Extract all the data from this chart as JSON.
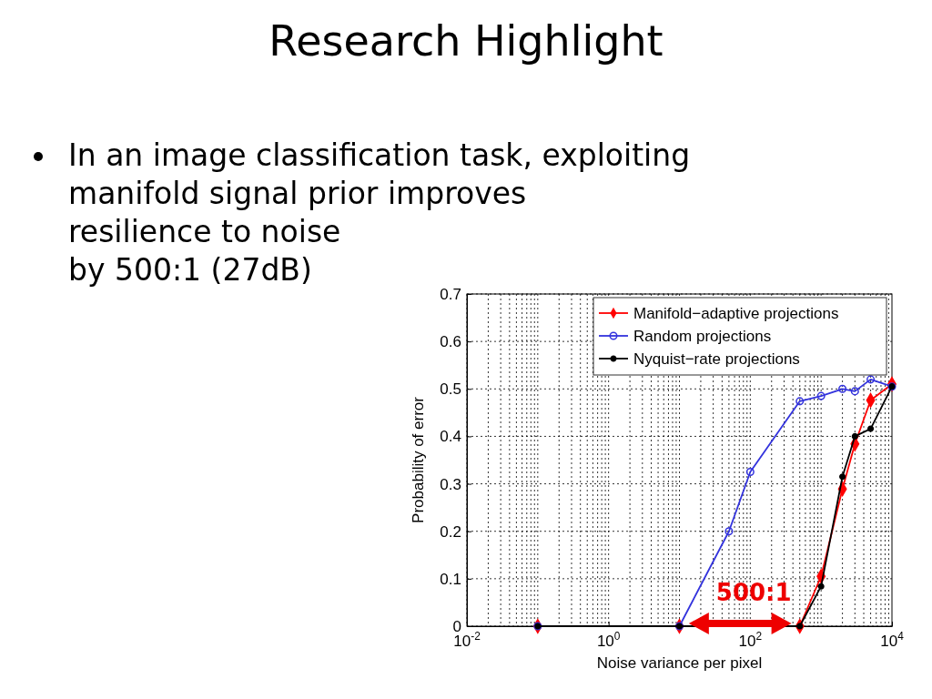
{
  "chart_data": {
    "type": "line",
    "title": "Research Highlight",
    "subtitle": "In an image classification task, exploiting\nmanifold signal prior improves\nresilience to noise\nby 500:1 (27dB)",
    "xlabel": "Noise variance per pixel",
    "ylabel": "Probability of error",
    "log": "x",
    "grid": true,
    "legend": "top right",
    "xlim": [
      0.01,
      10000
    ],
    "xticks": [
      {
        "value": 0.01,
        "label": "10$^{-2}$"
      },
      {
        "value": 1,
        "label": "10$^{0}$"
      },
      {
        "value": 100,
        "label": "10$^{2}$"
      },
      {
        "value": 10000,
        "label": "10$^{4}$"
      }
    ],
    "ylim": [
      0,
      0.7
    ],
    "yticks": [
      0,
      0.1,
      0.2,
      0.3,
      0.4,
      0.5,
      0.6,
      0.7
    ],
    "x": [
      0.1,
      10,
      50,
      100,
      500,
      1000,
      2000,
      3000,
      5000,
      10000
    ],
    "series": [
      {
        "name": "Manifold−adaptive projections",
        "color": "#ff0000",
        "marker": "diamond",
        "values": [
          0,
          0,
          null,
          null,
          0,
          0.105,
          0.289,
          0.384,
          0.476,
          0.51
        ]
      },
      {
        "name": "Random projections",
        "color": "#3333dd",
        "marker": "circle",
        "values": [
          0,
          0,
          0.2,
          0.325,
          0.474,
          0.485,
          0.5,
          0.495,
          0.52,
          0.505
        ]
      },
      {
        "name": "Nyquist−rate projections",
        "color": "#000000",
        "marker": "circle",
        "values": [
          0,
          0,
          null,
          null,
          0,
          0.084,
          0.315,
          0.4,
          0.416,
          0.505
        ]
      }
    ],
    "annotations": [
      "500:1"
    ]
  }
}
